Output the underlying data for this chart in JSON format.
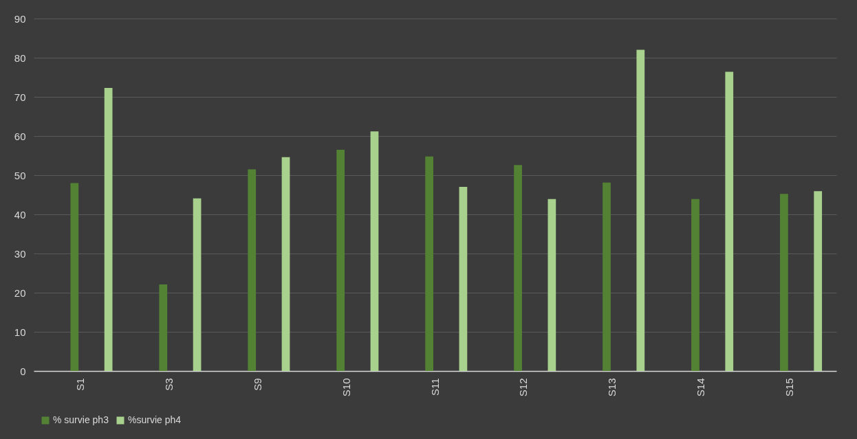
{
  "chart_data": {
    "type": "bar",
    "categories": [
      "S1",
      "S3",
      "S9",
      "S10",
      "S11",
      "S12",
      "S13",
      "S14",
      "S15"
    ],
    "series": [
      {
        "name": "% survie ph3",
        "color": "#548235",
        "values": [
          48.0,
          22.1,
          51.5,
          56.5,
          54.8,
          52.6,
          48.1,
          43.9,
          45.2
        ]
      },
      {
        "name": "%survie ph4",
        "color": "#a9d18e",
        "values": [
          72.3,
          44.1,
          54.6,
          61.2,
          47.0,
          43.9,
          82.0,
          76.4,
          45.9
        ]
      }
    ],
    "ylim": [
      0,
      90
    ],
    "yticks": [
      0,
      10,
      20,
      30,
      40,
      50,
      60,
      70,
      80,
      90
    ],
    "grid": "y",
    "legend": "bottom"
  }
}
